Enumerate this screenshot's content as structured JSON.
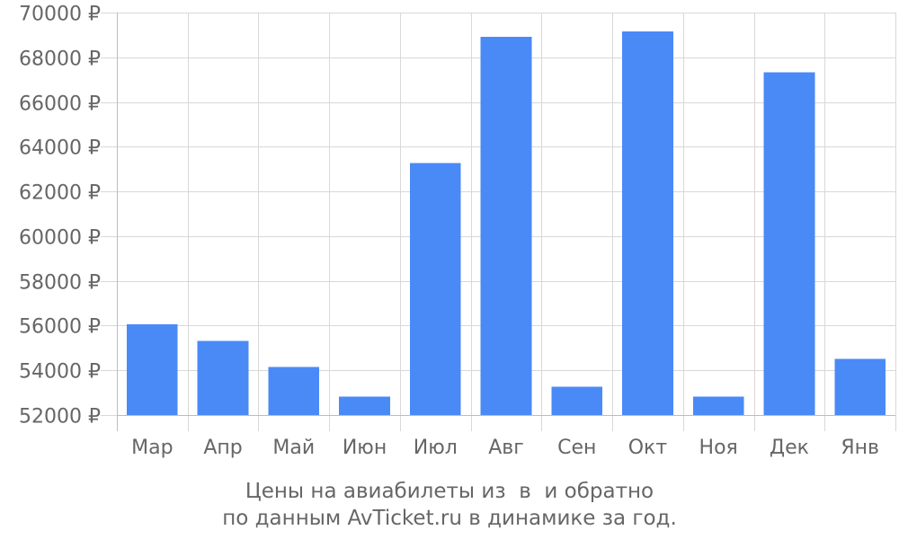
{
  "chart_data": {
    "type": "bar",
    "categories": [
      "Мар",
      "Апр",
      "Май",
      "Июн",
      "Июл",
      "Авг",
      "Сен",
      "Окт",
      "Ноя",
      "Дек",
      "Янв"
    ],
    "values": [
      56050,
      55320,
      54150,
      52830,
      63280,
      68910,
      53270,
      69150,
      52830,
      67330,
      54520
    ],
    "ylim": [
      52000,
      70000
    ],
    "yticks": [
      52000,
      54000,
      56000,
      58000,
      60000,
      62000,
      64000,
      66000,
      68000,
      70000
    ],
    "ytick_labels": [
      "52000 ₽",
      "54000 ₽",
      "56000 ₽",
      "58000 ₽",
      "60000 ₽",
      "62000 ₽",
      "64000 ₽",
      "66000 ₽",
      "68000 ₽",
      "70000 ₽"
    ],
    "grid": true,
    "bar_color": "#4a8af7",
    "title_line1": "Цены на авиабилеты из  в  и обратно",
    "title_line2": "по данным AvTicket.ru в динамике за год."
  }
}
